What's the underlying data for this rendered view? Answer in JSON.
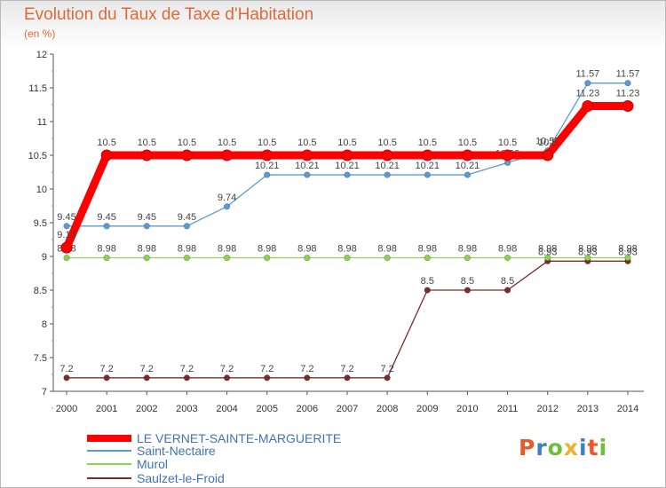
{
  "title": "Evolution du Taux de Taxe d'Habitation",
  "unit_label": "(en %)",
  "logo": {
    "text": "Proxiti",
    "colors": [
      "#e85a2a",
      "#3a7fc8",
      "#6cbf3b",
      "#f1b22b",
      "#3a7fc8",
      "#e85a2a",
      "#6cbf3b"
    ]
  },
  "chart_data": {
    "type": "line",
    "title": "Evolution du Taux de Taxe d'Habitation",
    "ylabel": "(en %)",
    "xlabel": "",
    "x": [
      "2000",
      "2001",
      "2002",
      "2003",
      "2004",
      "2005",
      "2006",
      "2007",
      "2008",
      "2009",
      "2010",
      "2011",
      "2012",
      "2013",
      "2014"
    ],
    "ylim": [
      7,
      12
    ],
    "yticks": [
      7,
      7.5,
      8,
      8.5,
      9,
      9.5,
      10,
      10.5,
      11,
      11.5,
      12
    ],
    "ytick_labels": [
      "7",
      "7.5",
      "8",
      "8.5",
      "9",
      "9.5",
      "10",
      "10.5",
      "11",
      "11.5",
      "12"
    ],
    "grid": false,
    "legend_position": "bottom",
    "series": [
      {
        "name": "LE VERNET-SAINTE-MARGUERITE",
        "color": "#ff0000",
        "style": "bold",
        "values": [
          9.13,
          10.5,
          10.5,
          10.5,
          10.5,
          10.5,
          10.5,
          10.5,
          10.5,
          10.5,
          10.5,
          10.5,
          10.5,
          11.23,
          11.23
        ],
        "labels": [
          "9.13",
          "10.5",
          "10.5",
          "10.5",
          "10.5",
          "10.5",
          "10.5",
          "10.5",
          "10.5",
          "10.5",
          "10.5",
          "10.5",
          "10.5",
          "11.23",
          "11.23"
        ]
      },
      {
        "name": "Saint-Nectaire",
        "color": "#5b9bd5",
        "values": [
          9.45,
          9.45,
          9.45,
          9.45,
          9.74,
          10.21,
          10.21,
          10.21,
          10.21,
          10.21,
          10.21,
          10.39,
          10.57,
          11.57,
          11.57
        ],
        "labels": [
          "9.45",
          "9.45",
          "9.45",
          "9.45",
          "9.74",
          "10.21",
          "10.21",
          "10.21",
          "10.21",
          "10.21",
          "10.21",
          "10.39",
          "10.57",
          "11.57",
          "11.57"
        ]
      },
      {
        "name": "Murol",
        "color": "#8fd24d",
        "values": [
          8.98,
          8.98,
          8.98,
          8.98,
          8.98,
          8.98,
          8.98,
          8.98,
          8.98,
          8.98,
          8.98,
          8.98,
          8.98,
          8.98,
          8.98
        ],
        "labels": [
          "8.98",
          "8.98",
          "8.98",
          "8.98",
          "8.98",
          "8.98",
          "8.98",
          "8.98",
          "8.98",
          "8.98",
          "8.98",
          "8.98",
          "8.98",
          "8.98",
          "8.98"
        ]
      },
      {
        "name": "Saulzet-le-Froid",
        "color": "#7b2c2c",
        "values": [
          7.2,
          7.2,
          7.2,
          7.2,
          7.2,
          7.2,
          7.2,
          7.2,
          7.2,
          8.5,
          8.5,
          8.5,
          8.93,
          8.93,
          8.93
        ],
        "labels": [
          "7.2",
          "7.2",
          "7.2",
          "7.2",
          "7.2",
          "7.2",
          "7.2",
          "7.2",
          "7.2",
          "8.5",
          "8.5",
          "8.5",
          "8.93",
          "8.93",
          "8.93"
        ]
      }
    ]
  }
}
